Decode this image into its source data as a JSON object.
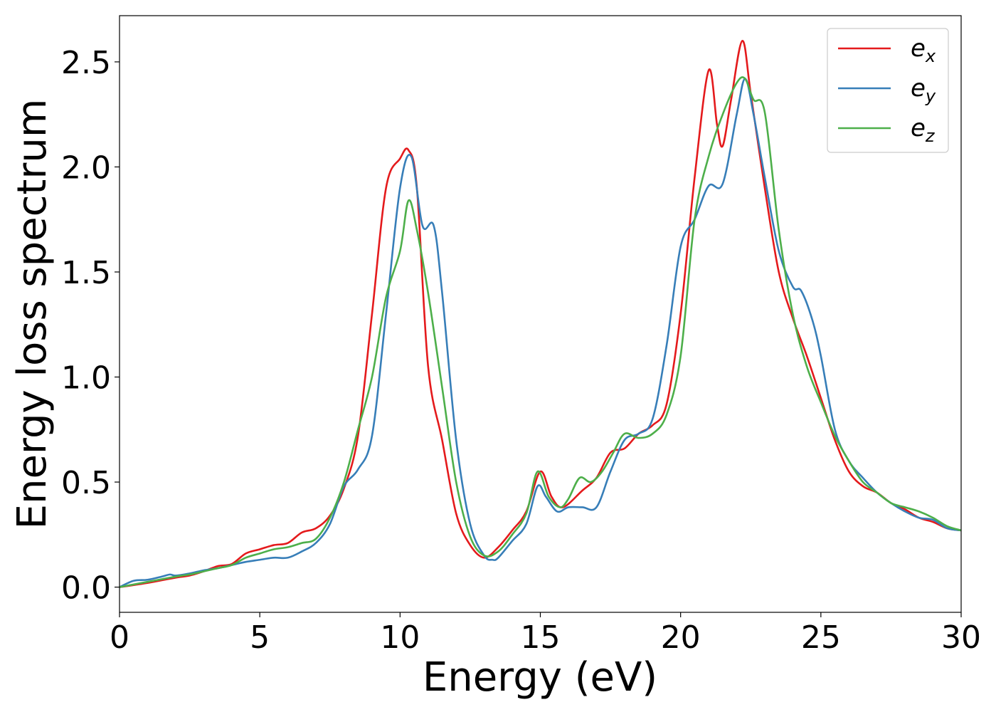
{
  "chart_data": {
    "type": "line",
    "title": "",
    "xlabel": "Energy (eV)",
    "ylabel": "Energy loss spectrum",
    "xlim": [
      0,
      30
    ],
    "ylim": [
      -0.12,
      2.72
    ],
    "xticks": [
      0,
      5,
      10,
      15,
      20,
      25,
      30
    ],
    "xtick_labels": [
      "0",
      "5",
      "10",
      "15",
      "20",
      "25",
      "30"
    ],
    "yticks": [
      0.0,
      0.5,
      1.0,
      1.5,
      2.0,
      2.5
    ],
    "ytick_labels": [
      "0.0",
      "0.5",
      "1.0",
      "1.5",
      "2.0",
      "2.5"
    ],
    "grid": false,
    "legend_position": "top-right",
    "series": [
      {
        "name": "e_x",
        "label_main": "e",
        "label_sub": "x",
        "color": "#e41a1c",
        "points": [
          [
            0,
            0
          ],
          [
            1,
            0.02
          ],
          [
            2,
            0.045
          ],
          [
            2.5,
            0.055
          ],
          [
            3,
            0.075
          ],
          [
            3.5,
            0.1
          ],
          [
            4,
            0.11
          ],
          [
            4.5,
            0.16
          ],
          [
            5,
            0.18
          ],
          [
            5.5,
            0.2
          ],
          [
            6,
            0.21
          ],
          [
            6.5,
            0.26
          ],
          [
            7,
            0.28
          ],
          [
            7.5,
            0.34
          ],
          [
            8,
            0.47
          ],
          [
            8.5,
            0.72
          ],
          [
            9,
            1.3
          ],
          [
            9.5,
            1.9
          ],
          [
            10,
            2.04
          ],
          [
            10.3,
            2.08
          ],
          [
            10.6,
            1.9
          ],
          [
            11,
            1.05
          ],
          [
            11.5,
            0.7
          ],
          [
            12,
            0.35
          ],
          [
            12.5,
            0.2
          ],
          [
            13,
            0.14
          ],
          [
            13.5,
            0.19
          ],
          [
            14,
            0.27
          ],
          [
            14.5,
            0.36
          ],
          [
            15,
            0.55
          ],
          [
            15.4,
            0.43
          ],
          [
            15.8,
            0.38
          ],
          [
            16.5,
            0.46
          ],
          [
            17,
            0.52
          ],
          [
            17.5,
            0.64
          ],
          [
            18,
            0.66
          ],
          [
            18.5,
            0.73
          ],
          [
            19,
            0.77
          ],
          [
            19.5,
            0.87
          ],
          [
            20,
            1.3
          ],
          [
            20.5,
            1.95
          ],
          [
            21,
            2.46
          ],
          [
            21.3,
            2.2
          ],
          [
            21.5,
            2.1
          ],
          [
            21.8,
            2.32
          ],
          [
            22.2,
            2.6
          ],
          [
            22.5,
            2.35
          ],
          [
            23,
            1.9
          ],
          [
            23.5,
            1.5
          ],
          [
            24,
            1.28
          ],
          [
            24.5,
            1.1
          ],
          [
            25,
            0.9
          ],
          [
            25.5,
            0.7
          ],
          [
            26,
            0.55
          ],
          [
            26.5,
            0.48
          ],
          [
            27,
            0.45
          ],
          [
            27.5,
            0.4
          ],
          [
            28,
            0.37
          ],
          [
            28.5,
            0.33
          ],
          [
            29,
            0.31
          ],
          [
            29.5,
            0.28
          ],
          [
            30,
            0.27
          ]
        ]
      },
      {
        "name": "e_y",
        "label_main": "e",
        "label_sub": "y",
        "color": "#377eb8",
        "points": [
          [
            0,
            0
          ],
          [
            0.5,
            0.03
          ],
          [
            1,
            0.035
          ],
          [
            1.5,
            0.05
          ],
          [
            1.8,
            0.06
          ],
          [
            2,
            0.055
          ],
          [
            2.5,
            0.065
          ],
          [
            3,
            0.08
          ],
          [
            3.5,
            0.09
          ],
          [
            4,
            0.105
          ],
          [
            4.5,
            0.12
          ],
          [
            5,
            0.13
          ],
          [
            5.5,
            0.14
          ],
          [
            6,
            0.14
          ],
          [
            6.5,
            0.17
          ],
          [
            7,
            0.21
          ],
          [
            7.5,
            0.3
          ],
          [
            8,
            0.48
          ],
          [
            8.5,
            0.56
          ],
          [
            9,
            0.72
          ],
          [
            9.5,
            1.3
          ],
          [
            10,
            1.9
          ],
          [
            10.4,
            2.05
          ],
          [
            10.8,
            1.72
          ],
          [
            11.2,
            1.72
          ],
          [
            11.5,
            1.4
          ],
          [
            12,
            0.7
          ],
          [
            12.5,
            0.3
          ],
          [
            13,
            0.15
          ],
          [
            13.3,
            0.13
          ],
          [
            13.5,
            0.14
          ],
          [
            14,
            0.22
          ],
          [
            14.5,
            0.3
          ],
          [
            14.9,
            0.48
          ],
          [
            15.2,
            0.43
          ],
          [
            15.6,
            0.36
          ],
          [
            16,
            0.38
          ],
          [
            16.5,
            0.38
          ],
          [
            17,
            0.38
          ],
          [
            17.5,
            0.55
          ],
          [
            18,
            0.7
          ],
          [
            18.5,
            0.73
          ],
          [
            19,
            0.8
          ],
          [
            19.5,
            1.15
          ],
          [
            20,
            1.62
          ],
          [
            20.5,
            1.75
          ],
          [
            21,
            1.91
          ],
          [
            21.5,
            1.92
          ],
          [
            22,
            2.25
          ],
          [
            22.3,
            2.42
          ],
          [
            22.6,
            2.25
          ],
          [
            23,
            1.95
          ],
          [
            23.5,
            1.6
          ],
          [
            24,
            1.43
          ],
          [
            24.3,
            1.41
          ],
          [
            24.7,
            1.27
          ],
          [
            25,
            1.1
          ],
          [
            25.5,
            0.75
          ],
          [
            26,
            0.6
          ],
          [
            26.5,
            0.52
          ],
          [
            27,
            0.45
          ],
          [
            27.5,
            0.4
          ],
          [
            28,
            0.36
          ],
          [
            28.5,
            0.33
          ],
          [
            29,
            0.32
          ],
          [
            29.5,
            0.28
          ],
          [
            30,
            0.27
          ]
        ]
      },
      {
        "name": "e_z",
        "label_main": "e",
        "label_sub": "z",
        "color": "#4daf4a",
        "points": [
          [
            0,
            0
          ],
          [
            1,
            0.025
          ],
          [
            2,
            0.05
          ],
          [
            2.5,
            0.06
          ],
          [
            3,
            0.075
          ],
          [
            3.5,
            0.09
          ],
          [
            4,
            0.105
          ],
          [
            4.5,
            0.14
          ],
          [
            5,
            0.16
          ],
          [
            5.5,
            0.18
          ],
          [
            6,
            0.19
          ],
          [
            6.5,
            0.21
          ],
          [
            7,
            0.23
          ],
          [
            7.5,
            0.33
          ],
          [
            8,
            0.5
          ],
          [
            8.5,
            0.75
          ],
          [
            9,
            1.0
          ],
          [
            9.5,
            1.38
          ],
          [
            10,
            1.6
          ],
          [
            10.3,
            1.84
          ],
          [
            10.6,
            1.7
          ],
          [
            11,
            1.4
          ],
          [
            11.5,
            0.95
          ],
          [
            12,
            0.5
          ],
          [
            12.5,
            0.24
          ],
          [
            13,
            0.15
          ],
          [
            13.5,
            0.17
          ],
          [
            14,
            0.25
          ],
          [
            14.5,
            0.35
          ],
          [
            14.9,
            0.55
          ],
          [
            15.3,
            0.43
          ],
          [
            15.7,
            0.38
          ],
          [
            16,
            0.42
          ],
          [
            16.4,
            0.52
          ],
          [
            16.8,
            0.5
          ],
          [
            17.2,
            0.55
          ],
          [
            17.6,
            0.64
          ],
          [
            18,
            0.73
          ],
          [
            18.5,
            0.71
          ],
          [
            19,
            0.73
          ],
          [
            19.5,
            0.82
          ],
          [
            20,
            1.1
          ],
          [
            20.5,
            1.75
          ],
          [
            21,
            2.05
          ],
          [
            21.5,
            2.25
          ],
          [
            22,
            2.4
          ],
          [
            22.3,
            2.42
          ],
          [
            22.6,
            2.32
          ],
          [
            23,
            2.26
          ],
          [
            23.5,
            1.7
          ],
          [
            24,
            1.3
          ],
          [
            24.5,
            1.05
          ],
          [
            25,
            0.88
          ],
          [
            25.5,
            0.72
          ],
          [
            26,
            0.6
          ],
          [
            26.5,
            0.5
          ],
          [
            27,
            0.45
          ],
          [
            27.5,
            0.4
          ],
          [
            28,
            0.38
          ],
          [
            28.5,
            0.36
          ],
          [
            29,
            0.33
          ],
          [
            29.5,
            0.29
          ],
          [
            30,
            0.27
          ]
        ]
      }
    ]
  }
}
